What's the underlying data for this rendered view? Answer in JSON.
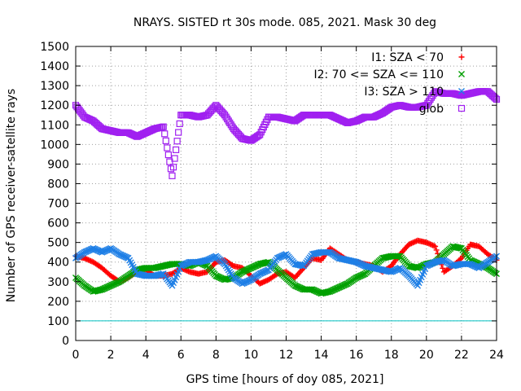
{
  "chart_data": {
    "type": "scatter",
    "title": "NRAYS. SISTED rt 30s mode. 085, 2021. Mask 30 deg",
    "xlabel": "GPS time [hours of doy 085, 2021]",
    "ylabel": "Number of GPS receiver-satellite rays",
    "xlim": [
      0,
      24
    ],
    "ylim": [
      0,
      1500
    ],
    "xticks": [
      0,
      2,
      4,
      6,
      8,
      10,
      12,
      14,
      16,
      18,
      20,
      22,
      24
    ],
    "yticks": [
      0,
      100,
      200,
      300,
      400,
      500,
      600,
      700,
      800,
      900,
      1000,
      1100,
      1200,
      1300,
      1400,
      1500
    ],
    "grid": true,
    "legend_position": "top-right",
    "reference_line": {
      "y": 100,
      "color": "#00c0c0"
    },
    "series": [
      {
        "name": "I1: SZA < 70",
        "color": "#ff0000",
        "marker": "+",
        "points": [
          [
            0,
            430
          ],
          [
            0.5,
            420
          ],
          [
            1,
            400
          ],
          [
            1.5,
            370
          ],
          [
            2,
            330
          ],
          [
            2.5,
            300
          ],
          [
            3,
            320
          ],
          [
            3.5,
            350
          ],
          [
            4,
            360
          ],
          [
            4.5,
            330
          ],
          [
            5,
            330
          ],
          [
            5.5,
            340
          ],
          [
            6,
            370
          ],
          [
            6.5,
            350
          ],
          [
            7,
            340
          ],
          [
            7.5,
            350
          ],
          [
            8,
            400
          ],
          [
            8.5,
            410
          ],
          [
            9,
            380
          ],
          [
            9.5,
            370
          ],
          [
            10,
            330
          ],
          [
            10.5,
            290
          ],
          [
            11,
            310
          ],
          [
            11.5,
            340
          ],
          [
            12,
            350
          ],
          [
            12.5,
            320
          ],
          [
            13,
            370
          ],
          [
            13.5,
            420
          ],
          [
            14,
            410
          ],
          [
            14.5,
            470
          ],
          [
            15,
            440
          ],
          [
            15.5,
            410
          ],
          [
            16,
            400
          ],
          [
            16.5,
            390
          ],
          [
            17,
            380
          ],
          [
            17.5,
            350
          ],
          [
            18,
            380
          ],
          [
            18.5,
            440
          ],
          [
            19,
            490
          ],
          [
            19.5,
            510
          ],
          [
            20,
            500
          ],
          [
            20.5,
            480
          ],
          [
            21,
            350
          ],
          [
            21.5,
            380
          ],
          [
            22,
            420
          ],
          [
            22.5,
            490
          ],
          [
            23,
            480
          ],
          [
            23.5,
            440
          ],
          [
            24,
            410
          ]
        ]
      },
      {
        "name": "I2: 70 <= SZA <= 110",
        "color": "#00a000",
        "marker": "x",
        "points": [
          [
            0,
            320
          ],
          [
            0.5,
            280
          ],
          [
            1,
            250
          ],
          [
            1.5,
            260
          ],
          [
            2,
            280
          ],
          [
            2.5,
            300
          ],
          [
            3,
            330
          ],
          [
            3.5,
            360
          ],
          [
            4,
            370
          ],
          [
            4.5,
            370
          ],
          [
            5,
            380
          ],
          [
            5.5,
            390
          ],
          [
            6,
            390
          ],
          [
            6.5,
            380
          ],
          [
            7,
            400
          ],
          [
            7.5,
            380
          ],
          [
            8,
            330
          ],
          [
            8.5,
            310
          ],
          [
            9,
            320
          ],
          [
            9.5,
            350
          ],
          [
            10,
            370
          ],
          [
            10.5,
            390
          ],
          [
            11,
            400
          ],
          [
            11.5,
            360
          ],
          [
            12,
            320
          ],
          [
            12.5,
            280
          ],
          [
            13,
            260
          ],
          [
            13.5,
            260
          ],
          [
            14,
            240
          ],
          [
            14.5,
            250
          ],
          [
            15,
            270
          ],
          [
            15.5,
            290
          ],
          [
            16,
            320
          ],
          [
            16.5,
            340
          ],
          [
            17,
            380
          ],
          [
            17.5,
            420
          ],
          [
            18,
            430
          ],
          [
            18.5,
            430
          ],
          [
            19,
            380
          ],
          [
            19.5,
            370
          ],
          [
            20,
            390
          ],
          [
            20.5,
            400
          ],
          [
            21,
            440
          ],
          [
            21.5,
            480
          ],
          [
            22,
            470
          ],
          [
            22.5,
            410
          ],
          [
            23,
            390
          ],
          [
            23.5,
            370
          ],
          [
            24,
            340
          ]
        ]
      },
      {
        "name": "I3: SZA > 110",
        "color": "#1e7fe6",
        "marker": "x",
        "points": [
          [
            0,
            420
          ],
          [
            0.5,
            450
          ],
          [
            1,
            470
          ],
          [
            1.5,
            450
          ],
          [
            2,
            470
          ],
          [
            2.5,
            440
          ],
          [
            3,
            420
          ],
          [
            3.5,
            340
          ],
          [
            4,
            330
          ],
          [
            4.5,
            330
          ],
          [
            5,
            340
          ],
          [
            5.5,
            280
          ],
          [
            6,
            380
          ],
          [
            6.5,
            400
          ],
          [
            7,
            400
          ],
          [
            7.5,
            410
          ],
          [
            8,
            430
          ],
          [
            8.5,
            390
          ],
          [
            9,
            320
          ],
          [
            9.5,
            290
          ],
          [
            10,
            310
          ],
          [
            10.5,
            340
          ],
          [
            11,
            360
          ],
          [
            11.5,
            420
          ],
          [
            12,
            440
          ],
          [
            12.5,
            390
          ],
          [
            13,
            380
          ],
          [
            13.5,
            440
          ],
          [
            14,
            450
          ],
          [
            14.5,
            450
          ],
          [
            15,
            420
          ],
          [
            15.5,
            410
          ],
          [
            16,
            400
          ],
          [
            16.5,
            380
          ],
          [
            17,
            370
          ],
          [
            17.5,
            360
          ],
          [
            18,
            350
          ],
          [
            18.5,
            370
          ],
          [
            19,
            330
          ],
          [
            19.5,
            280
          ],
          [
            20,
            380
          ],
          [
            20.5,
            400
          ],
          [
            21,
            410
          ],
          [
            21.5,
            380
          ],
          [
            22,
            390
          ],
          [
            22.5,
            390
          ],
          [
            23,
            370
          ],
          [
            23.5,
            400
          ],
          [
            24,
            430
          ]
        ]
      },
      {
        "name": "glob",
        "color": "#a020f0",
        "marker": "square",
        "points": [
          [
            0,
            1200
          ],
          [
            0.5,
            1140
          ],
          [
            1,
            1120
          ],
          [
            1.5,
            1080
          ],
          [
            2,
            1070
          ],
          [
            2.5,
            1060
          ],
          [
            3,
            1060
          ],
          [
            3.5,
            1040
          ],
          [
            4,
            1060
          ],
          [
            4.5,
            1080
          ],
          [
            5,
            1090
          ],
          [
            5.5,
            840
          ],
          [
            6,
            1150
          ],
          [
            6.5,
            1150
          ],
          [
            7,
            1140
          ],
          [
            7.5,
            1150
          ],
          [
            8,
            1200
          ],
          [
            8.5,
            1150
          ],
          [
            9,
            1080
          ],
          [
            9.5,
            1030
          ],
          [
            10,
            1020
          ],
          [
            10.5,
            1050
          ],
          [
            11,
            1140
          ],
          [
            11.5,
            1140
          ],
          [
            12,
            1130
          ],
          [
            12.5,
            1120
          ],
          [
            13,
            1150
          ],
          [
            13.5,
            1150
          ],
          [
            14,
            1150
          ],
          [
            14.5,
            1150
          ],
          [
            15,
            1130
          ],
          [
            15.5,
            1110
          ],
          [
            16,
            1120
          ],
          [
            16.5,
            1140
          ],
          [
            17,
            1140
          ],
          [
            17.5,
            1160
          ],
          [
            18,
            1190
          ],
          [
            18.5,
            1200
          ],
          [
            19,
            1190
          ],
          [
            19.5,
            1190
          ],
          [
            20,
            1200
          ],
          [
            20.5,
            1270
          ],
          [
            21,
            1260
          ],
          [
            21.5,
            1260
          ],
          [
            22,
            1250
          ],
          [
            22.5,
            1260
          ],
          [
            23,
            1270
          ],
          [
            23.5,
            1270
          ],
          [
            24,
            1230
          ]
        ]
      }
    ]
  }
}
